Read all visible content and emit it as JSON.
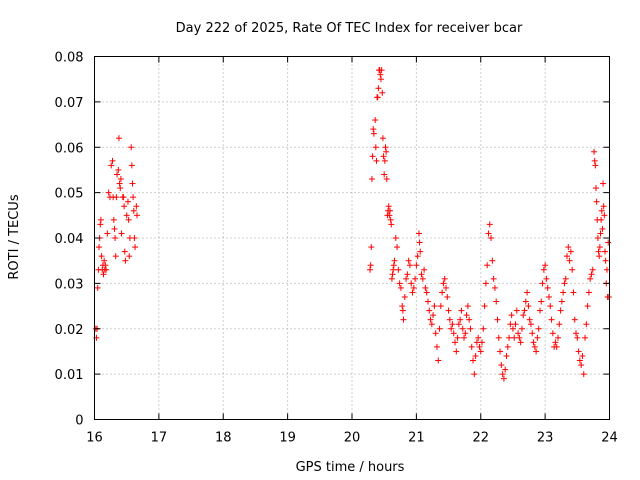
{
  "chart_data": {
    "type": "scatter",
    "title": "Day 222 of 2025, Rate Of TEC Index for receiver bcar",
    "xlabel": "GPS time / hours",
    "ylabel": "ROTI / TECUs",
    "xlim": [
      16,
      24
    ],
    "ylim": [
      0,
      0.08
    ],
    "x_ticks": [
      "16",
      "17",
      "18",
      "19",
      "20",
      "21",
      "22",
      "23",
      "24"
    ],
    "y_ticks": [
      "0",
      "0.01",
      "0.02",
      "0.03",
      "0.04",
      "0.05",
      "0.06",
      "0.07",
      "0.08"
    ],
    "grid": true,
    "marker": "+",
    "marker_color": "#ff0000",
    "series": [
      {
        "name": "ROTI",
        "points": [
          [
            16.02,
            0.02
          ],
          [
            16.03,
            0.018
          ],
          [
            16.04,
            0.02
          ],
          [
            16.05,
            0.029
          ],
          [
            16.06,
            0.033
          ],
          [
            16.07,
            0.038
          ],
          [
            16.08,
            0.04
          ],
          [
            16.09,
            0.043
          ],
          [
            16.1,
            0.044
          ],
          [
            16.11,
            0.036
          ],
          [
            16.12,
            0.033
          ],
          [
            16.13,
            0.034
          ],
          [
            16.14,
            0.032
          ],
          [
            16.15,
            0.035
          ],
          [
            16.16,
            0.033
          ],
          [
            16.17,
            0.034
          ],
          [
            16.18,
            0.033
          ],
          [
            16.2,
            0.041
          ],
          [
            16.22,
            0.05
          ],
          [
            16.24,
            0.049
          ],
          [
            16.26,
            0.056
          ],
          [
            16.28,
            0.057
          ],
          [
            16.29,
            0.049
          ],
          [
            16.3,
            0.044
          ],
          [
            16.31,
            0.042
          ],
          [
            16.32,
            0.04
          ],
          [
            16.33,
            0.036
          ],
          [
            16.34,
            0.049
          ],
          [
            16.35,
            0.054
          ],
          [
            16.37,
            0.055
          ],
          [
            16.38,
            0.062
          ],
          [
            16.39,
            0.052
          ],
          [
            16.4,
            0.051
          ],
          [
            16.41,
            0.053
          ],
          [
            16.42,
            0.041
          ],
          [
            16.44,
            0.049
          ],
          [
            16.45,
            0.049
          ],
          [
            16.46,
            0.047
          ],
          [
            16.47,
            0.037
          ],
          [
            16.48,
            0.035
          ],
          [
            16.5,
            0.045
          ],
          [
            16.52,
            0.048
          ],
          [
            16.53,
            0.044
          ],
          [
            16.54,
            0.036
          ],
          [
            16.55,
            0.04
          ],
          [
            16.57,
            0.06
          ],
          [
            16.58,
            0.056
          ],
          [
            16.59,
            0.052
          ],
          [
            16.6,
            0.049
          ],
          [
            16.61,
            0.046
          ],
          [
            16.62,
            0.04
          ],
          [
            16.63,
            0.038
          ],
          [
            16.65,
            0.047
          ],
          [
            16.66,
            0.045
          ],
          [
            20.28,
            0.033
          ],
          [
            20.29,
            0.034
          ],
          [
            20.3,
            0.038
          ],
          [
            20.31,
            0.053
          ],
          [
            20.32,
            0.058
          ],
          [
            20.33,
            0.064
          ],
          [
            20.34,
            0.063
          ],
          [
            20.36,
            0.066
          ],
          [
            20.37,
            0.06
          ],
          [
            20.38,
            0.057
          ],
          [
            20.39,
            0.071
          ],
          [
            20.4,
            0.071
          ],
          [
            20.41,
            0.073
          ],
          [
            20.42,
            0.077
          ],
          [
            20.43,
            0.077
          ],
          [
            20.44,
            0.076
          ],
          [
            20.45,
            0.075
          ],
          [
            20.46,
            0.077
          ],
          [
            20.47,
            0.072
          ],
          [
            20.48,
            0.062
          ],
          [
            20.49,
            0.058
          ],
          [
            20.5,
            0.054
          ],
          [
            20.51,
            0.057
          ],
          [
            20.52,
            0.06
          ],
          [
            20.53,
            0.059
          ],
          [
            20.54,
            0.053
          ],
          [
            20.55,
            0.045
          ],
          [
            20.56,
            0.046
          ],
          [
            20.57,
            0.047
          ],
          [
            20.58,
            0.045
          ],
          [
            20.59,
            0.046
          ],
          [
            20.6,
            0.044
          ],
          [
            20.61,
            0.043
          ],
          [
            20.62,
            0.031
          ],
          [
            20.63,
            0.032
          ],
          [
            20.64,
            0.033
          ],
          [
            20.65,
            0.034
          ],
          [
            20.66,
            0.035
          ],
          [
            20.68,
            0.04
          ],
          [
            20.7,
            0.038
          ],
          [
            20.72,
            0.033
          ],
          [
            20.74,
            0.03
          ],
          [
            20.76,
            0.029
          ],
          [
            20.78,
            0.025
          ],
          [
            20.79,
            0.024
          ],
          [
            20.8,
            0.022
          ],
          [
            20.82,
            0.027
          ],
          [
            20.84,
            0.031
          ],
          [
            20.86,
            0.032
          ],
          [
            20.88,
            0.035
          ],
          [
            20.9,
            0.034
          ],
          [
            20.92,
            0.03
          ],
          [
            20.94,
            0.028
          ],
          [
            20.96,
            0.029
          ],
          [
            20.98,
            0.031
          ],
          [
            21.0,
            0.034
          ],
          [
            21.02,
            0.036
          ],
          [
            21.04,
            0.041
          ],
          [
            21.05,
            0.039
          ],
          [
            21.06,
            0.037
          ],
          [
            21.08,
            0.032
          ],
          [
            21.1,
            0.031
          ],
          [
            21.12,
            0.033
          ],
          [
            21.14,
            0.029
          ],
          [
            21.16,
            0.028
          ],
          [
            21.18,
            0.026
          ],
          [
            21.2,
            0.024
          ],
          [
            21.22,
            0.022
          ],
          [
            21.24,
            0.021
          ],
          [
            21.26,
            0.023
          ],
          [
            21.28,
            0.025
          ],
          [
            21.3,
            0.019
          ],
          [
            21.32,
            0.016
          ],
          [
            21.34,
            0.013
          ],
          [
            21.36,
            0.02
          ],
          [
            21.38,
            0.025
          ],
          [
            21.4,
            0.028
          ],
          [
            21.42,
            0.03
          ],
          [
            21.44,
            0.031
          ],
          [
            21.46,
            0.029
          ],
          [
            21.48,
            0.027
          ],
          [
            21.5,
            0.024
          ],
          [
            21.52,
            0.022
          ],
          [
            21.54,
            0.02
          ],
          [
            21.56,
            0.021
          ],
          [
            21.58,
            0.019
          ],
          [
            21.6,
            0.017
          ],
          [
            21.62,
            0.015
          ],
          [
            21.64,
            0.018
          ],
          [
            21.66,
            0.021
          ],
          [
            21.68,
            0.022
          ],
          [
            21.7,
            0.024
          ],
          [
            21.72,
            0.02
          ],
          [
            21.74,
            0.018
          ],
          [
            21.76,
            0.019
          ],
          [
            21.78,
            0.023
          ],
          [
            21.8,
            0.025
          ],
          [
            21.82,
            0.022
          ],
          [
            21.84,
            0.02
          ],
          [
            21.86,
            0.016
          ],
          [
            21.88,
            0.013
          ],
          [
            21.9,
            0.01
          ],
          [
            21.92,
            0.014
          ],
          [
            21.94,
            0.017
          ],
          [
            21.96,
            0.018
          ],
          [
            21.98,
            0.016
          ],
          [
            22.0,
            0.015
          ],
          [
            22.02,
            0.017
          ],
          [
            22.04,
            0.02
          ],
          [
            22.06,
            0.025
          ],
          [
            22.08,
            0.03
          ],
          [
            22.1,
            0.034
          ],
          [
            22.12,
            0.041
          ],
          [
            22.14,
            0.043
          ],
          [
            22.16,
            0.04
          ],
          [
            22.18,
            0.035
          ],
          [
            22.2,
            0.031
          ],
          [
            22.22,
            0.029
          ],
          [
            22.24,
            0.026
          ],
          [
            22.26,
            0.022
          ],
          [
            22.28,
            0.018
          ],
          [
            22.3,
            0.015
          ],
          [
            22.32,
            0.012
          ],
          [
            22.34,
            0.01
          ],
          [
            22.36,
            0.009
          ],
          [
            22.38,
            0.011
          ],
          [
            22.4,
            0.014
          ],
          [
            22.42,
            0.016
          ],
          [
            22.44,
            0.018
          ],
          [
            22.46,
            0.021
          ],
          [
            22.48,
            0.023
          ],
          [
            22.5,
            0.02
          ],
          [
            22.52,
            0.018
          ],
          [
            22.54,
            0.021
          ],
          [
            22.56,
            0.024
          ],
          [
            22.58,
            0.019
          ],
          [
            22.6,
            0.018
          ],
          [
            22.62,
            0.017
          ],
          [
            22.64,
            0.02
          ],
          [
            22.66,
            0.023
          ],
          [
            22.68,
            0.024
          ],
          [
            22.7,
            0.026
          ],
          [
            22.72,
            0.028
          ],
          [
            22.74,
            0.025
          ],
          [
            22.76,
            0.022
          ],
          [
            22.78,
            0.021
          ],
          [
            22.8,
            0.019
          ],
          [
            22.82,
            0.017
          ],
          [
            22.84,
            0.016
          ],
          [
            22.86,
            0.015
          ],
          [
            22.88,
            0.018
          ],
          [
            22.9,
            0.02
          ],
          [
            22.92,
            0.024
          ],
          [
            22.94,
            0.026
          ],
          [
            22.96,
            0.03
          ],
          [
            22.98,
            0.033
          ],
          [
            23.0,
            0.034
          ],
          [
            23.02,
            0.031
          ],
          [
            23.04,
            0.029
          ],
          [
            23.06,
            0.027
          ],
          [
            23.08,
            0.025
          ],
          [
            23.1,
            0.022
          ],
          [
            23.12,
            0.019
          ],
          [
            23.14,
            0.016
          ],
          [
            23.16,
            0.017
          ],
          [
            23.18,
            0.016
          ],
          [
            23.2,
            0.018
          ],
          [
            23.22,
            0.021
          ],
          [
            23.24,
            0.024
          ],
          [
            23.26,
            0.026
          ],
          [
            23.28,
            0.028
          ],
          [
            23.3,
            0.03
          ],
          [
            23.32,
            0.031
          ],
          [
            23.34,
            0.036
          ],
          [
            23.36,
            0.038
          ],
          [
            23.38,
            0.035
          ],
          [
            23.4,
            0.037
          ],
          [
            23.42,
            0.033
          ],
          [
            23.44,
            0.028
          ],
          [
            23.46,
            0.022
          ],
          [
            23.48,
            0.019
          ],
          [
            23.5,
            0.018
          ],
          [
            23.52,
            0.015
          ],
          [
            23.54,
            0.013
          ],
          [
            23.56,
            0.012
          ],
          [
            23.58,
            0.014
          ],
          [
            23.6,
            0.01
          ],
          [
            23.62,
            0.018
          ],
          [
            23.64,
            0.021
          ],
          [
            23.66,
            0.025
          ],
          [
            23.68,
            0.028
          ],
          [
            23.7,
            0.031
          ],
          [
            23.72,
            0.032
          ],
          [
            23.74,
            0.033
          ],
          [
            23.76,
            0.059
          ],
          [
            23.77,
            0.057
          ],
          [
            23.78,
            0.056
          ],
          [
            23.79,
            0.051
          ],
          [
            23.8,
            0.048
          ],
          [
            23.81,
            0.044
          ],
          [
            23.82,
            0.04
          ],
          [
            23.83,
            0.037
          ],
          [
            23.84,
            0.036
          ],
          [
            23.85,
            0.038
          ],
          [
            23.86,
            0.041
          ],
          [
            23.87,
            0.044
          ],
          [
            23.88,
            0.046
          ],
          [
            23.89,
            0.042
          ],
          [
            23.9,
            0.052
          ],
          [
            23.91,
            0.047
          ],
          [
            23.92,
            0.045
          ],
          [
            23.93,
            0.037
          ],
          [
            23.94,
            0.035
          ],
          [
            23.95,
            0.03
          ],
          [
            23.96,
            0.033
          ],
          [
            23.97,
            0.027
          ],
          [
            23.98,
            0.039
          ],
          [
            23.99,
            0.027
          ]
        ]
      }
    ]
  }
}
